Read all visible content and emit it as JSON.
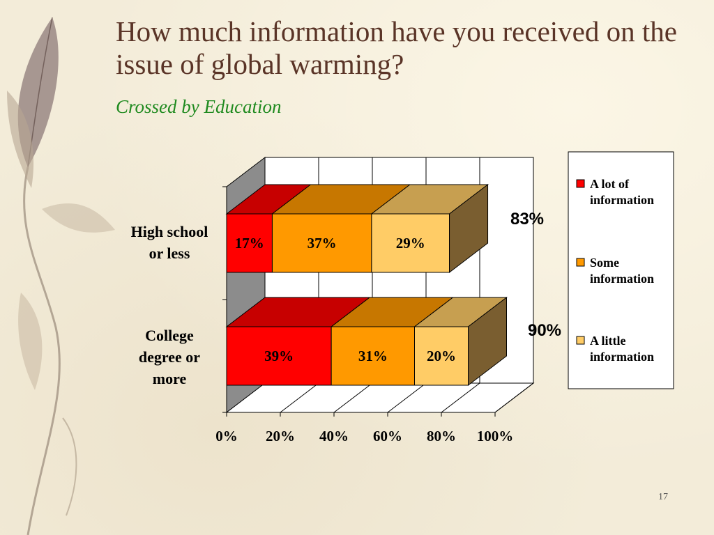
{
  "slide": {
    "title": "How much information have you received on the issue of global warming?",
    "subtitle": "Crossed by Education",
    "page_number": "17"
  },
  "colors": {
    "a_lot": "#ff0000",
    "some": "#ff9900",
    "a_little": "#ffcc66",
    "subtitle": "#1f8a1f",
    "title": "#5a3427"
  },
  "chart_data": {
    "type": "bar",
    "orientation": "horizontal",
    "stacked": true,
    "three_d": true,
    "categories": [
      "High school or less",
      "College degree or more"
    ],
    "series": [
      {
        "name": "A lot of information",
        "values": [
          17,
          39
        ],
        "labels": [
          "17%",
          "39%"
        ]
      },
      {
        "name": "Some information",
        "values": [
          37,
          31
        ],
        "labels": [
          "37%",
          "31%"
        ]
      },
      {
        "name": "A little information",
        "values": [
          29,
          20
        ],
        "labels": [
          "29%",
          "20%"
        ]
      }
    ],
    "totals": [
      "83%",
      "90%"
    ],
    "xlim": [
      0,
      100
    ],
    "x_ticks": [
      "0%",
      "20%",
      "40%",
      "60%",
      "80%",
      "100%"
    ],
    "grid": true,
    "legend_position": "right"
  }
}
